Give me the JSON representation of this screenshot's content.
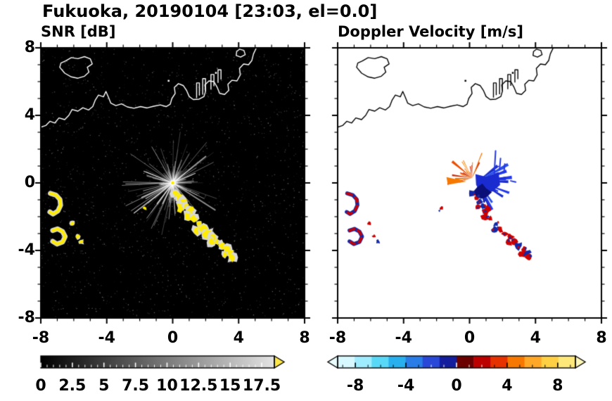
{
  "header": {
    "title": "Fukuoka, 20190104 [23:03, el=0.0]"
  },
  "chart_data": [
    {
      "id": "snr",
      "type": "heatmap",
      "title": "SNR [dB]",
      "xlim": [
        -8,
        8
      ],
      "ylim": [
        -8,
        8
      ],
      "xticks": [
        -8,
        -4,
        0,
        4,
        8
      ],
      "xtick_labels": [
        "-8",
        "-4",
        "0",
        "4",
        "8"
      ],
      "yticks": [
        8,
        4,
        0,
        -4,
        -8
      ],
      "ytick_labels": [
        "8",
        "4",
        "0",
        "-4",
        "-8"
      ],
      "background": "#000000",
      "coast_color": "#ffffff",
      "colorbar": {
        "range": [
          0,
          18.5
        ],
        "ticks": [
          0,
          2.5,
          5,
          7.5,
          10,
          12.5,
          15,
          17.5
        ],
        "tick_labels": [
          "0",
          "2.5",
          "5",
          "7.5",
          "10",
          "12.5",
          "15",
          "17.5"
        ],
        "gradient": [
          "#000000",
          "#e4e4e4"
        ],
        "over_color": "#ffe84a"
      },
      "features": {
        "starburst": {
          "rays": 150,
          "rmax": 3.1,
          "color": "#cccccc"
        },
        "long_rays": [
          {
            "angle": 218,
            "len": 3.0
          },
          {
            "angle": 205,
            "len": 2.1
          },
          {
            "angle": 233,
            "len": 1.6
          },
          {
            "angle": 158,
            "len": 1.9
          },
          {
            "angle": 23,
            "len": 1.5
          },
          {
            "angle": 305,
            "len": 1.2
          }
        ],
        "center_color": "#ffee00",
        "chain": {
          "color": "#ffec00",
          "fringe": "#d8d8d8"
        },
        "crescents": {
          "color": "#ffec00",
          "fringe": "#d8d8d8"
        }
      }
    },
    {
      "id": "doppler",
      "type": "heatmap",
      "title": "Doppler Velocity [m/s]",
      "xlim": [
        -8,
        8
      ],
      "ylim": [
        -8,
        8
      ],
      "xticks": [
        -8,
        -4,
        0,
        4,
        8
      ],
      "xtick_labels": [
        "-8",
        "-4",
        "0",
        "4",
        "8"
      ],
      "yticks": [
        8,
        4,
        0,
        -4,
        -8
      ],
      "ytick_labels": [
        "8",
        "4",
        "0",
        "-4",
        "-8"
      ],
      "background": "#ffffff",
      "coast_color": "#000000",
      "colorbar": {
        "range": [
          -9.4,
          9.4
        ],
        "ticks": [
          -8,
          -4,
          0,
          4,
          8
        ],
        "tick_labels": [
          "-8",
          "-4",
          "0",
          "4",
          "8"
        ],
        "segments": [
          "#d8f8ff",
          "#a0ecff",
          "#58d8f6",
          "#28b0ee",
          "#2a7ce6",
          "#2a48d8",
          "#141e9c",
          "#6a0000",
          "#bc0000",
          "#e63200",
          "#f67800",
          "#ffa828",
          "#ffd044",
          "#ffe87a"
        ],
        "under_color": "#eafdff",
        "over_color": "#fff8b8"
      },
      "features": {
        "orange": {
          "cx": 0.15,
          "cy": 0.3,
          "colors": [
            "#f57800",
            "#e84e00",
            "#cc2600",
            "#ff9c1e"
          ]
        },
        "blue": {
          "cx": 0.5,
          "cy": 0.1,
          "colors": [
            "#1a2cd0",
            "#2238e8",
            "#101a96",
            "#2a50e8"
          ],
          "dark": "#0a1078",
          "spikes": [
            [
              [
                1.5,
                0.55
              ],
              [
                1.58,
                1.9
              ]
            ],
            [
              [
                1.82,
                0.8
              ],
              [
                1.88,
                1.45
              ]
            ],
            [
              [
                2.08,
                0.6
              ],
              [
                2.14,
                1.12
              ]
            ],
            [
              [
                2.5,
                0.12
              ],
              [
                2.8,
                0.05
              ]
            ]
          ]
        },
        "chain": {
          "red": "#cc0000",
          "blue": "#1228a8"
        }
      }
    }
  ],
  "echoes": {
    "chain": [
      [
        0.18,
        -0.62
      ],
      [
        0.4,
        -0.9
      ],
      [
        0.62,
        -1.12
      ],
      [
        0.5,
        -1.45
      ],
      [
        0.82,
        -1.38
      ],
      [
        1.05,
        -1.62
      ],
      [
        0.95,
        -1.95
      ],
      [
        1.28,
        -2.12
      ],
      [
        1.58,
        -2.42
      ],
      [
        1.5,
        -2.78
      ],
      [
        1.85,
        -2.72
      ],
      [
        2.12,
        -3.02
      ],
      [
        2.45,
        -3.18
      ],
      [
        2.38,
        -3.52
      ],
      [
        2.72,
        -3.5
      ],
      [
        2.98,
        -3.72
      ],
      [
        3.28,
        -3.92
      ],
      [
        3.18,
        -4.22
      ],
      [
        3.52,
        -4.12
      ],
      [
        3.62,
        -4.42
      ]
    ],
    "isolated": [
      -1.7,
      -1.5
    ],
    "west_arcs": [
      [
        [
          -7.42,
          -0.62
        ],
        [
          -7.08,
          -0.72
        ],
        [
          -6.84,
          -0.98
        ],
        [
          -6.8,
          -1.32
        ],
        [
          -6.96,
          -1.66
        ],
        [
          -7.25,
          -1.84
        ],
        [
          -7.45,
          -1.72
        ]
      ],
      [
        [
          -7.28,
          -2.82
        ],
        [
          -6.98,
          -2.72
        ],
        [
          -6.68,
          -2.88
        ],
        [
          -6.52,
          -3.18
        ],
        [
          -6.68,
          -3.5
        ],
        [
          -7.02,
          -3.62
        ],
        [
          -7.28,
          -3.46
        ]
      ]
    ],
    "west_dots": [
      [
        -5.78,
        -3.15
      ],
      [
        -5.55,
        -3.48
      ],
      [
        -6.1,
        -2.4
      ]
    ]
  },
  "coastlines": {
    "paths": [
      {
        "closed": false,
        "points": [
          [
            -8,
            3.3
          ],
          [
            -7.7,
            3.4
          ],
          [
            -7.45,
            3.65
          ],
          [
            -7.15,
            3.55
          ],
          [
            -6.9,
            3.85
          ],
          [
            -6.55,
            3.75
          ],
          [
            -6.3,
            4.0
          ],
          [
            -6.1,
            4.35
          ],
          [
            -5.75,
            4.25
          ],
          [
            -5.45,
            4.45
          ],
          [
            -5.1,
            4.32
          ],
          [
            -4.85,
            4.52
          ],
          [
            -4.7,
            4.9
          ],
          [
            -4.5,
            5.2
          ],
          [
            -4.2,
            5.1
          ],
          [
            -4.05,
            5.42
          ],
          [
            -3.9,
            5.08
          ],
          [
            -3.75,
            4.72
          ],
          [
            -3.45,
            4.58
          ],
          [
            -3.1,
            4.68
          ],
          [
            -2.75,
            4.5
          ],
          [
            -2.35,
            4.42
          ],
          [
            -1.95,
            4.52
          ],
          [
            -1.55,
            4.44
          ],
          [
            -1.15,
            4.54
          ],
          [
            -0.75,
            4.62
          ],
          [
            -0.4,
            4.52
          ],
          [
            -0.15,
            4.66
          ],
          [
            -0.05,
            5.0
          ],
          [
            0.15,
            5.3
          ],
          [
            0.1,
            5.66
          ],
          [
            0.35,
            5.88
          ],
          [
            0.65,
            5.76
          ],
          [
            0.85,
            5.46
          ],
          [
            1.0,
            5.12
          ],
          [
            1.25,
            4.94
          ],
          [
            1.6,
            4.96
          ],
          [
            1.9,
            5.12
          ],
          [
            2.0,
            5.46
          ],
          [
            1.95,
            5.8
          ],
          [
            2.2,
            6.04
          ],
          [
            2.5,
            6.0
          ],
          [
            2.7,
            5.66
          ],
          [
            2.85,
            5.3
          ],
          [
            3.15,
            5.24
          ],
          [
            3.4,
            5.48
          ],
          [
            3.35,
            5.84
          ],
          [
            3.6,
            6.08
          ],
          [
            3.9,
            6.04
          ],
          [
            4.1,
            6.4
          ],
          [
            4.05,
            6.78
          ],
          [
            4.3,
            7.04
          ],
          [
            4.6,
            7.0
          ],
          [
            4.8,
            7.25
          ],
          [
            4.9,
            7.64
          ],
          [
            5.1,
            8.05
          ]
        ]
      },
      {
        "closed": false,
        "points": [
          [
            1.45,
            5.05
          ],
          [
            1.45,
            5.92
          ],
          [
            1.62,
            5.92
          ],
          [
            1.62,
            5.2
          ]
        ]
      },
      {
        "closed": false,
        "points": [
          [
            1.82,
            5.25
          ],
          [
            1.82,
            6.18
          ],
          [
            1.99,
            6.18
          ],
          [
            1.99,
            5.45
          ]
        ]
      },
      {
        "closed": false,
        "points": [
          [
            2.32,
            5.55
          ],
          [
            2.32,
            6.42
          ],
          [
            2.5,
            6.42
          ],
          [
            2.5,
            5.75
          ]
        ]
      },
      {
        "closed": false,
        "points": [
          [
            2.75,
            5.95
          ],
          [
            2.75,
            6.7
          ],
          [
            2.93,
            6.7
          ],
          [
            2.93,
            6.15
          ]
        ]
      },
      {
        "closed": true,
        "points": [
          [
            -6.85,
            6.85
          ],
          [
            -6.55,
            6.5
          ],
          [
            -6.15,
            6.28
          ],
          [
            -5.75,
            6.2
          ],
          [
            -5.35,
            6.32
          ],
          [
            -5.08,
            6.56
          ],
          [
            -5.18,
            6.85
          ],
          [
            -4.88,
            7.05
          ],
          [
            -5.0,
            7.35
          ],
          [
            -5.35,
            7.48
          ],
          [
            -5.75,
            7.36
          ],
          [
            -6.15,
            7.42
          ],
          [
            -6.5,
            7.22
          ],
          [
            -6.78,
            7.1
          ]
        ]
      },
      {
        "closed": true,
        "points": [
          [
            3.85,
            7.55
          ],
          [
            4.12,
            7.45
          ],
          [
            4.4,
            7.6
          ],
          [
            4.32,
            7.85
          ],
          [
            4.05,
            7.92
          ],
          [
            3.88,
            7.78
          ]
        ]
      }
    ],
    "dots": [
      [
        -0.25,
        6.05
      ],
      [
        2.62,
        6.52
      ]
    ]
  }
}
